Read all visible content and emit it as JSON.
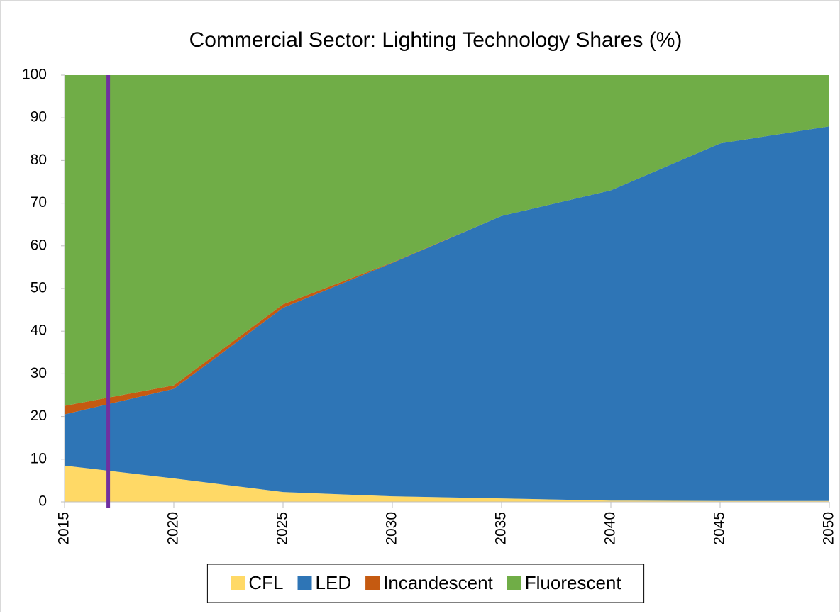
{
  "chart_data": {
    "type": "stacked_area",
    "title": "Commercial  Sector: Lighting Technology Shares (%)",
    "x": [
      2015,
      2020,
      2025,
      2030,
      2035,
      2040,
      2045,
      2050
    ],
    "series": [
      {
        "name": "CFL",
        "color": "#ffd966",
        "values": [
          8.5,
          5.5,
          2.3,
          1.3,
          0.8,
          0.3,
          0.2,
          0.2
        ]
      },
      {
        "name": "LED",
        "color": "#2e75b6",
        "values": [
          12,
          21,
          43.2,
          54.7,
          66.2,
          72.7,
          83.8,
          87.8
        ]
      },
      {
        "name": "Incandescent",
        "color": "#c55a11",
        "values": [
          2,
          0.8,
          0.8,
          0.1,
          0,
          0,
          0,
          0
        ]
      },
      {
        "name": "Fluorescent",
        "color": "#70ad47",
        "values": [
          77.5,
          72.7,
          53.7,
          43.9,
          33,
          27,
          16,
          12
        ]
      }
    ],
    "xlim": [
      2015,
      2050
    ],
    "xticks": [
      2015,
      2020,
      2025,
      2030,
      2035,
      2040,
      2045,
      2050
    ],
    "ylim": [
      0,
      100
    ],
    "yticks": [
      0,
      10,
      20,
      30,
      40,
      50,
      60,
      70,
      80,
      90,
      100
    ],
    "marker_line": {
      "x": 2017,
      "color": "#7030a0"
    },
    "legend": "bottom"
  }
}
